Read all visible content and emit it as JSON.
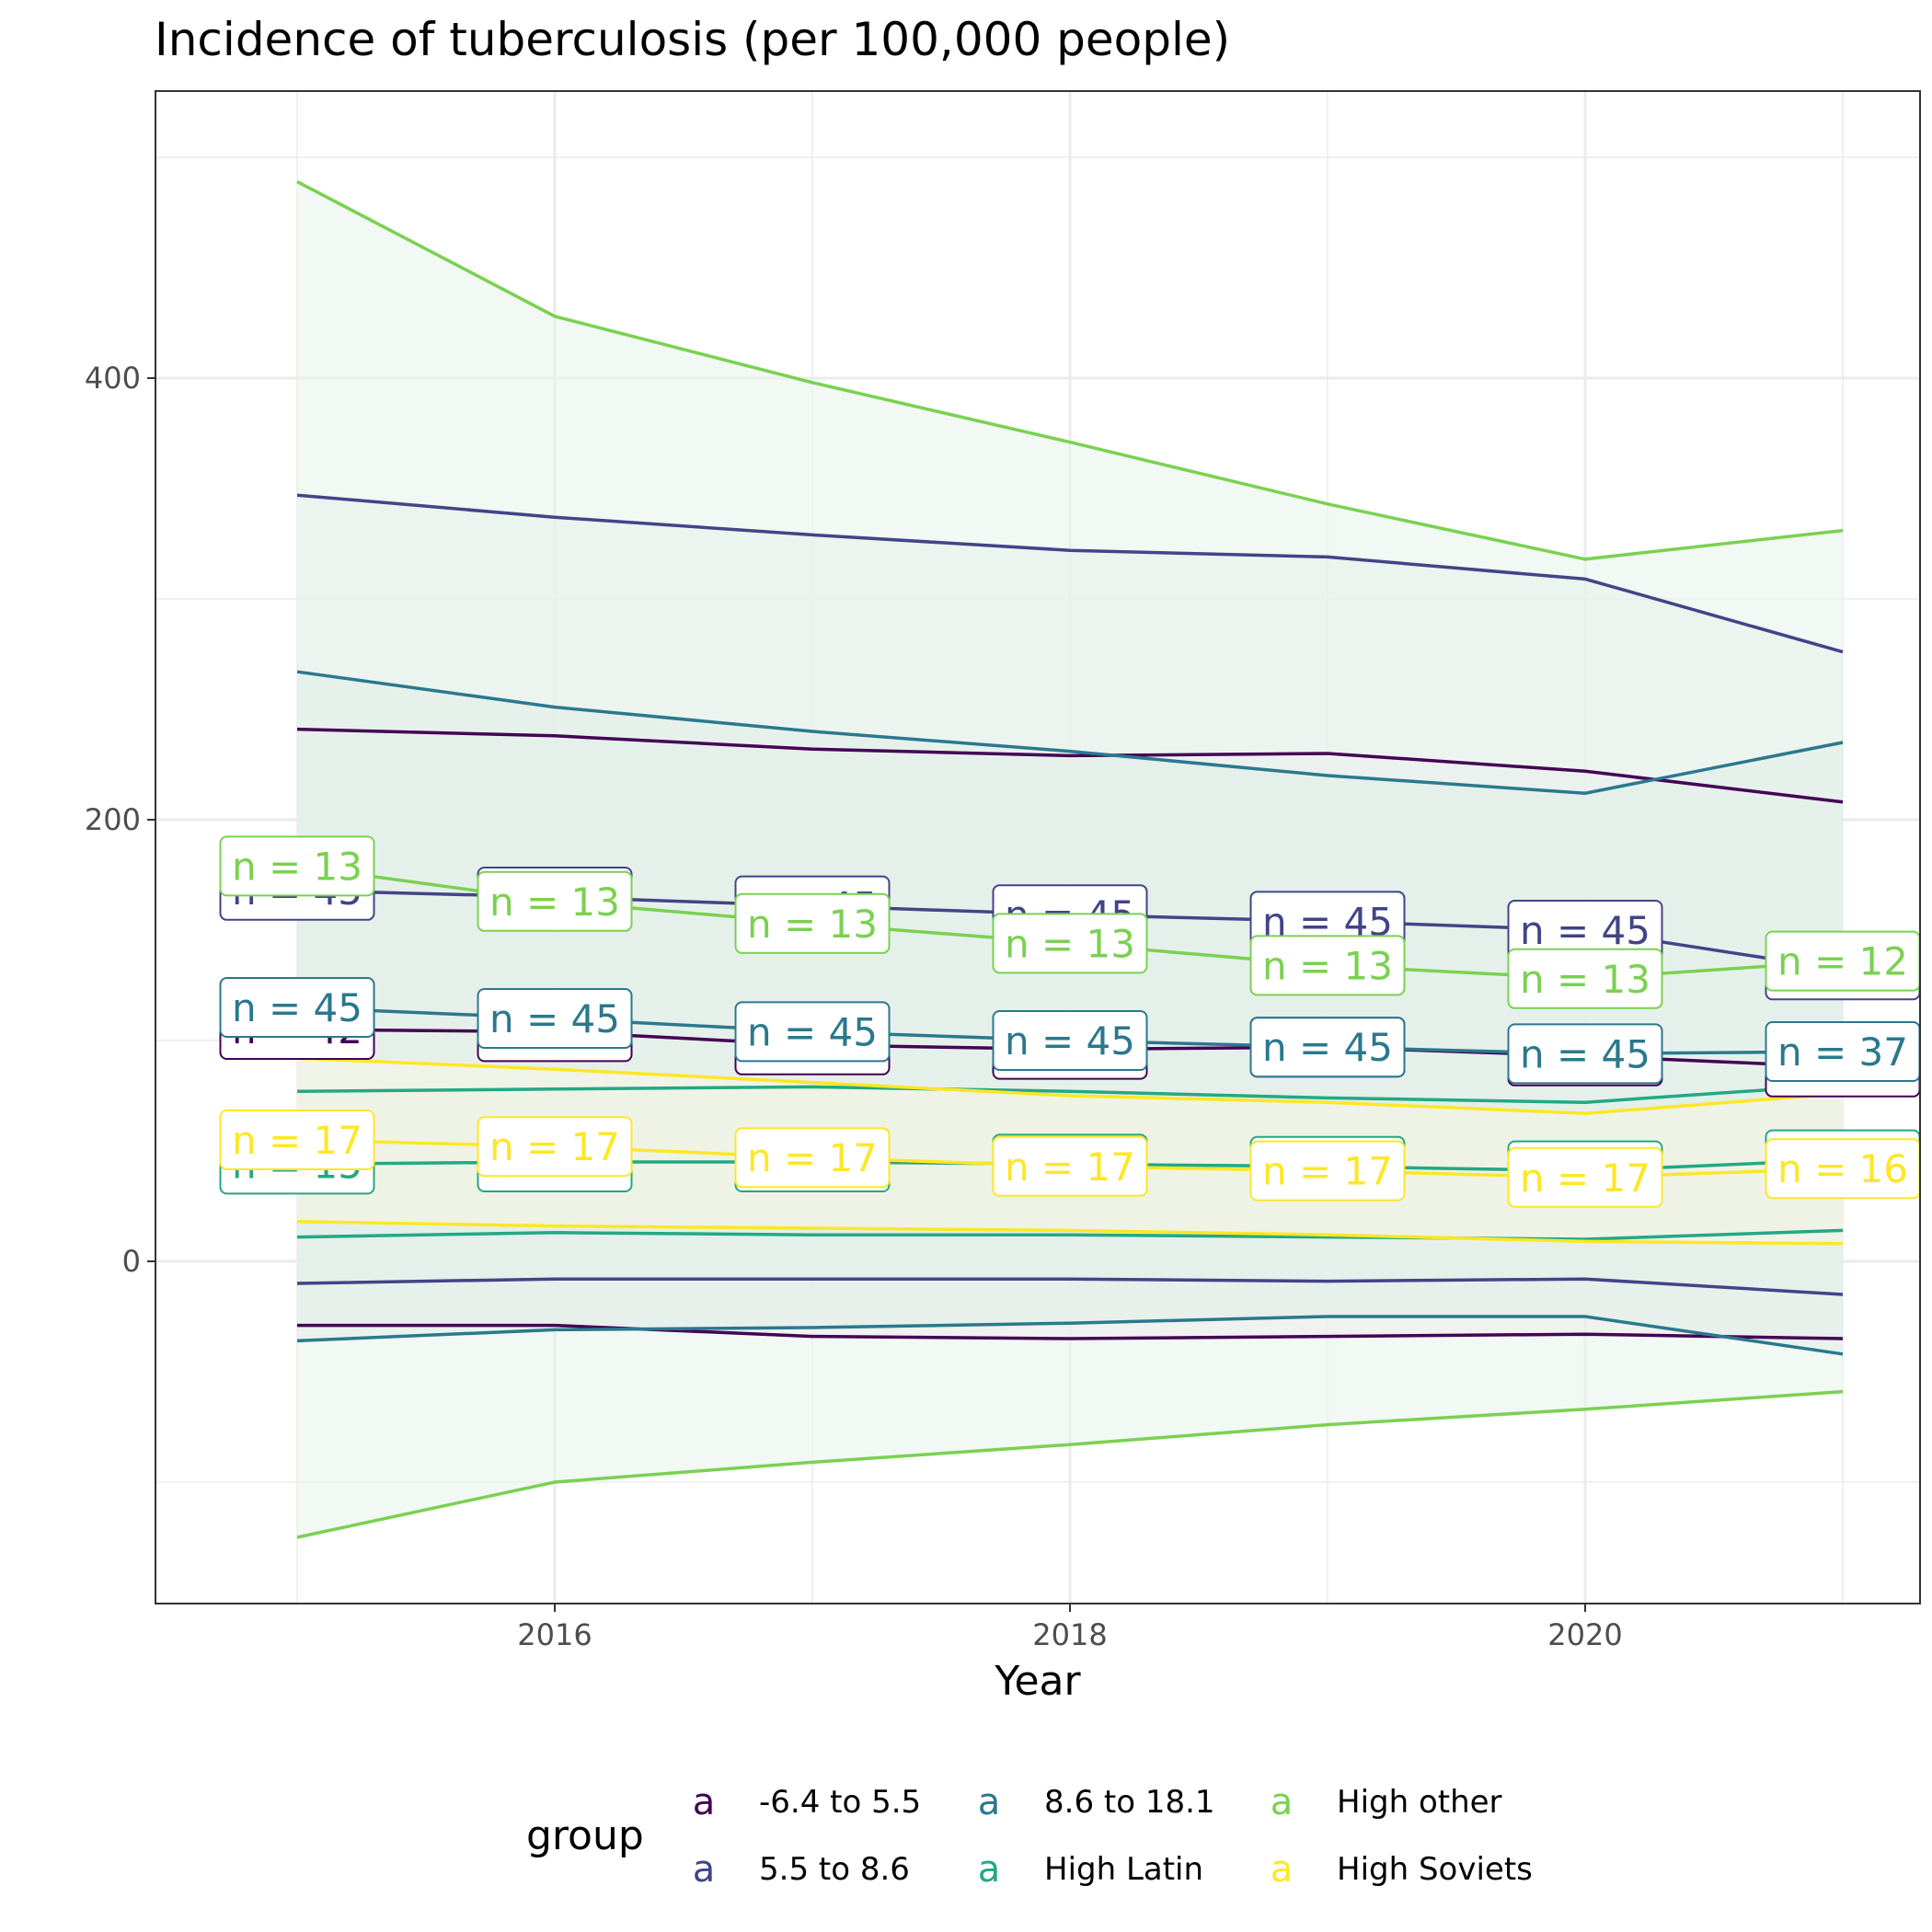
{
  "chart_data": {
    "type": "line",
    "title": "Incidence of tuberculosis (per 100,000 people)",
    "xlabel": "Year",
    "ylabel": "",
    "x": [
      2015,
      2016,
      2017,
      2018,
      2019,
      2020,
      2021
    ],
    "xlim": [
      2014.45,
      2021.3
    ],
    "ylim": [
      -155,
      530
    ],
    "x_ticks": [
      2016,
      2018,
      2020
    ],
    "x_tick_labels": [
      "2016",
      "2018",
      "2020"
    ],
    "y_ticks": [
      0,
      200,
      400
    ],
    "y_tick_labels": [
      "0",
      "200",
      "400"
    ],
    "grid": true,
    "legend": {
      "title": "group",
      "position": "bottom",
      "key_glyph": "a"
    },
    "series": [
      {
        "name": "-6.4 to 5.5",
        "color": "#440154",
        "mean": [
          105,
          104,
          98,
          96,
          97,
          93,
          88
        ],
        "upper": [
          241,
          238,
          232,
          229,
          230,
          222,
          208
        ],
        "lower": [
          -29,
          -29,
          -34,
          -35,
          -34,
          -33,
          -35
        ],
        "n": [
          "n = 42",
          "n = 42",
          "n = 42",
          "n = 42",
          "n = 42",
          "n = 42",
          "n = 35"
        ]
      },
      {
        "name": "5.5 to 8.6",
        "color": "#414487",
        "mean": [
          168,
          165,
          161,
          157,
          154,
          150,
          132
        ],
        "upper": [
          347,
          337,
          329,
          322,
          319,
          309,
          276
        ],
        "lower": [
          -10,
          -8,
          -8,
          -8,
          -9,
          -8,
          -15
        ],
        "n": [
          "n = 45",
          "n = 45",
          "n = 45",
          "n = 45",
          "n = 45",
          "n = 45",
          "n = 45"
        ]
      },
      {
        "name": "8.6 to 18.1",
        "color": "#2A788E",
        "mean": [
          115,
          110,
          104,
          100,
          97,
          94,
          95
        ],
        "upper": [
          267,
          251,
          240,
          231,
          220,
          212,
          235
        ],
        "lower": [
          -36,
          -31,
          -30,
          -28,
          -25,
          -25,
          -42
        ],
        "n": [
          "n = 45",
          "n = 45",
          "n = 45",
          "n = 45",
          "n = 45",
          "n = 45",
          "n = 37"
        ]
      },
      {
        "name": "High Latin",
        "color": "#22A884",
        "mean": [
          44,
          45,
          45,
          44,
          43,
          41,
          46
        ],
        "upper": [
          77,
          78,
          79,
          77,
          74,
          72,
          80
        ],
        "lower": [
          11,
          13,
          12,
          12,
          11,
          10,
          14
        ],
        "n": [
          "n = 15",
          "n = 15",
          "n = 15",
          "n = 15",
          "n = 15",
          "n = 15",
          "n = 15"
        ]
      },
      {
        "name": "High other",
        "color": "#7AD151",
        "mean": [
          179,
          163,
          153,
          144,
          134,
          128,
          136
        ],
        "upper": [
          489,
          428,
          398,
          371,
          343,
          318,
          331
        ],
        "lower": [
          -125,
          -100,
          -91,
          -83,
          -74,
          -67,
          -59
        ],
        "n": [
          "n = 13",
          "n = 13",
          "n = 13",
          "n = 13",
          "n = 13",
          "n = 13",
          "n = 12"
        ]
      },
      {
        "name": "High Soviets",
        "color": "#FDE725",
        "mean": [
          55,
          52,
          47,
          43,
          41,
          38,
          42
        ],
        "upper": [
          92,
          87,
          81,
          75,
          72,
          67,
          76
        ],
        "lower": [
          18,
          16,
          15,
          14,
          12,
          9,
          8
        ],
        "n": [
          "n = 17",
          "n = 17",
          "n = 17",
          "n = 17",
          "n = 17",
          "n = 17",
          "n = 16"
        ]
      }
    ],
    "ribbon_fills": [
      "#f4e8ec",
      "#e8ecf3",
      "#dcebe8",
      "#d6ece6",
      "#e8f3ea",
      "#f7f5e3"
    ]
  }
}
